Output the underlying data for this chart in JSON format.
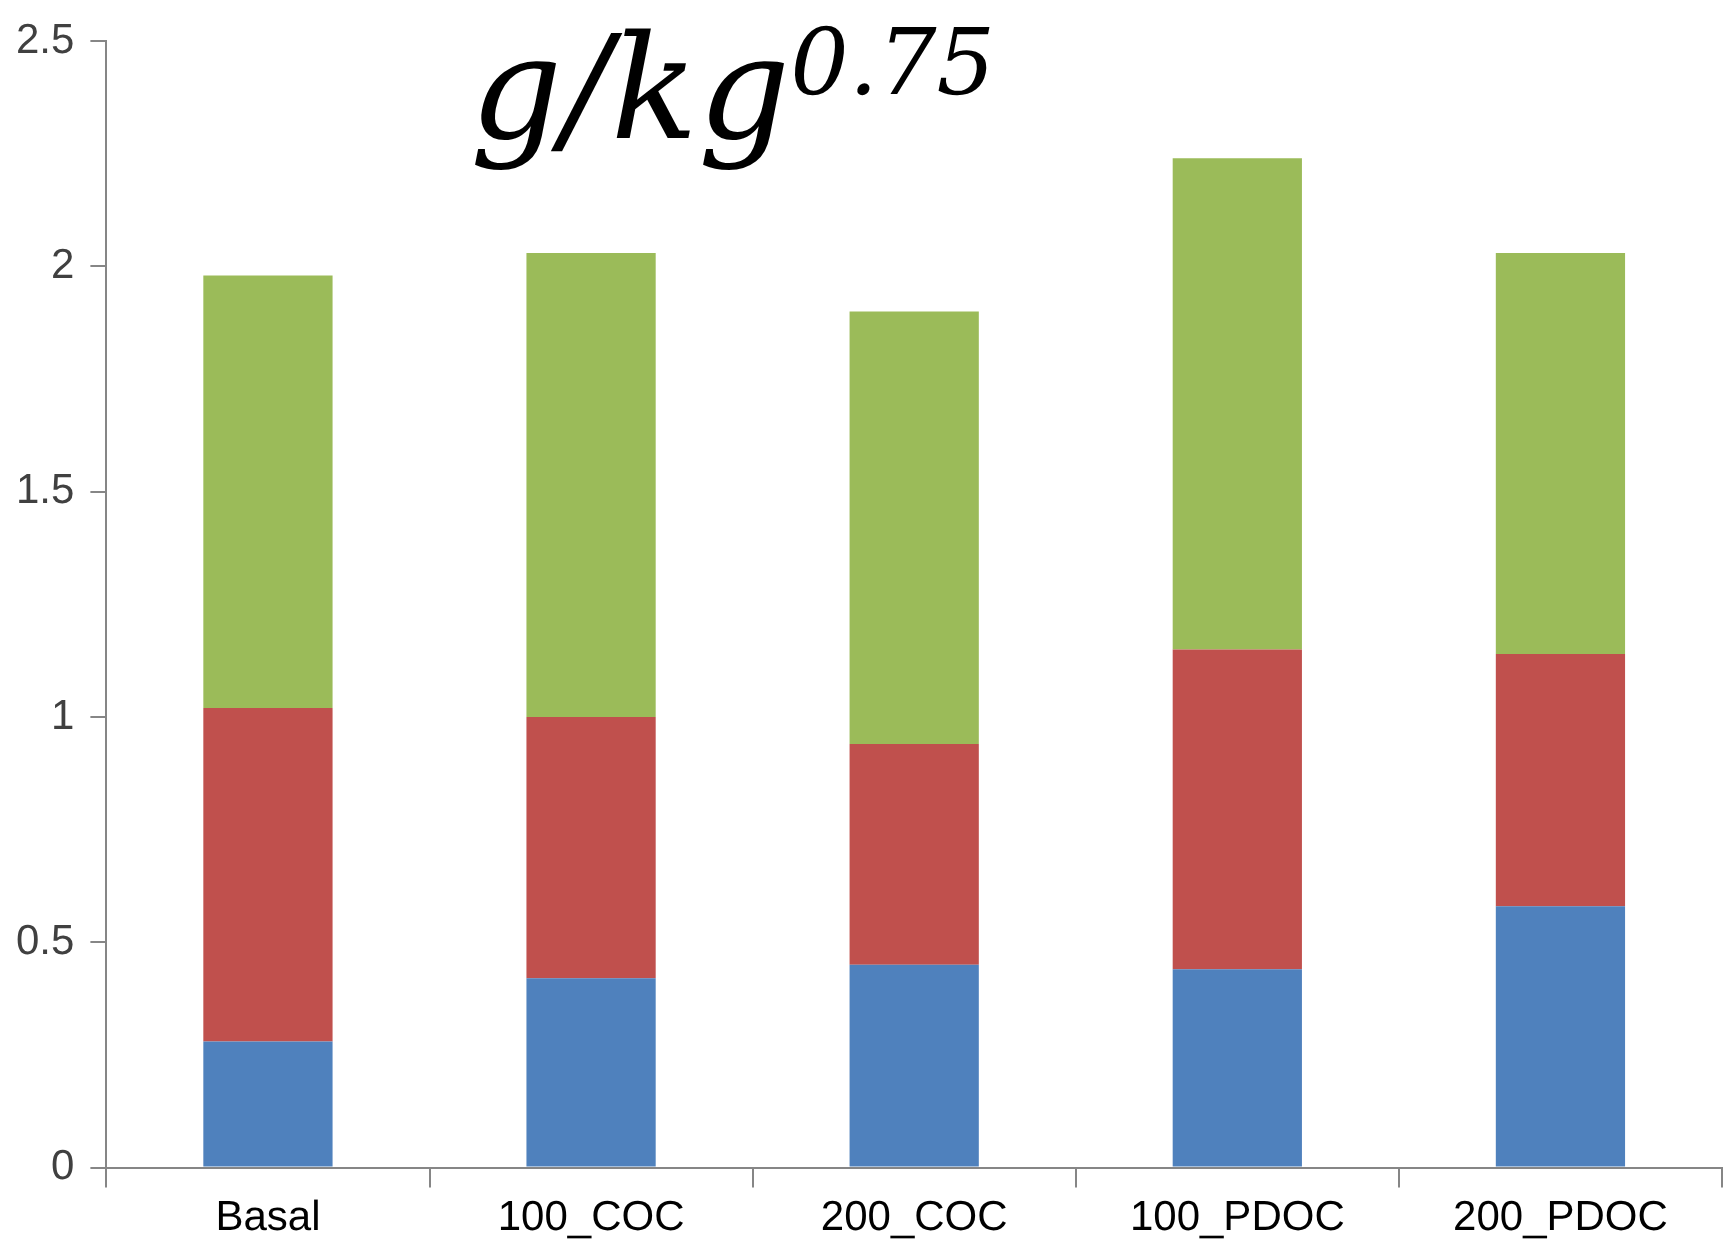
{
  "chart_data": {
    "type": "bar",
    "title": "g/kg$^{0.75}$",
    "stacked": true,
    "categories": [
      "Basal",
      "100_COC",
      "200_COC",
      "100_PDOC",
      "200_PDOC"
    ],
    "series": [
      {
        "color": "#4f81bd",
        "values": [
          0.28,
          0.42,
          0.45,
          0.44,
          0.58
        ]
      },
      {
        "color": "#c0504d",
        "values": [
          0.74,
          0.58,
          0.49,
          0.71,
          0.56
        ]
      },
      {
        "color": "#9bbb59",
        "values": [
          0.96,
          1.03,
          0.96,
          1.09,
          0.89
        ]
      }
    ],
    "ylim": [
      0,
      2.5
    ],
    "yticks": [
      0,
      0.5,
      1,
      1.5,
      2,
      2.5
    ],
    "grid": false,
    "legend": false
  }
}
